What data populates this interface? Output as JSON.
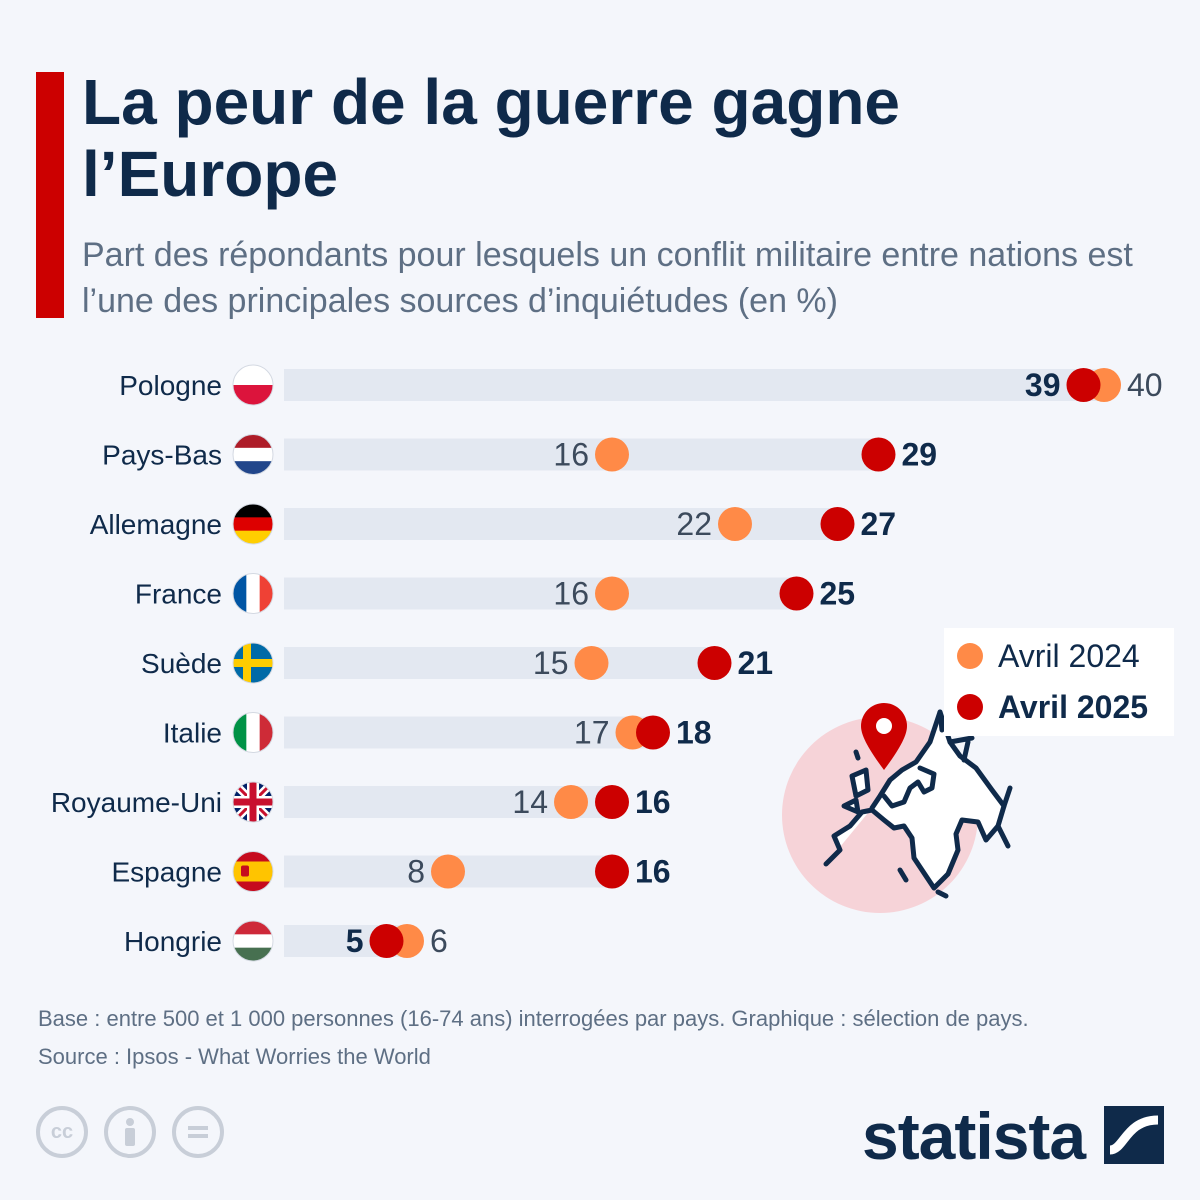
{
  "header": {
    "title": "La peur de la guerre gagne l’Europe",
    "subtitle": "Part des répondants pour lesquels un conflit militaire entre nations est l’une des principales sources d’inquiétudes (en %)"
  },
  "chart_data": {
    "type": "dot",
    "title": "La peur de la guerre gagne l’Europe",
    "subtitle": "Part des répondants pour lesquels un conflit militaire entre nations est l’une des principales sources d’inquiétudes (en %)",
    "categories": [
      "Pologne",
      "Pays-Bas",
      "Allemagne",
      "France",
      "Suède",
      "Italie",
      "Royaume-Uni",
      "Espagne",
      "Hongrie"
    ],
    "series": [
      {
        "name": "Avril 2024",
        "color": "#ff8a47",
        "values": [
          40,
          16,
          22,
          16,
          15,
          17,
          14,
          8,
          6
        ]
      },
      {
        "name": "Avril 2025",
        "color": "#cc0000",
        "values": [
          39,
          29,
          27,
          25,
          21,
          18,
          16,
          16,
          5
        ]
      }
    ],
    "flags": [
      "flag-poland-icon",
      "flag-netherlands-icon",
      "flag-germany-icon",
      "flag-france-icon",
      "flag-sweden-icon",
      "flag-italy-icon",
      "flag-uk-icon",
      "flag-spain-icon",
      "flag-hungary-icon"
    ],
    "xlim": [
      0,
      40
    ],
    "grid": false,
    "legend": "right"
  },
  "illustration": {
    "icon": "europe-map-pin-icon"
  },
  "footer": {
    "base": "Base : entre 500 et 1 000 personnes (16-74 ans) interrogées par pays. Graphique : sélection de pays.",
    "source": "Source : Ipsos - What Worries the World",
    "logo": "statista",
    "license_icons": [
      "cc-icon",
      "by-icon",
      "nd-icon"
    ]
  }
}
